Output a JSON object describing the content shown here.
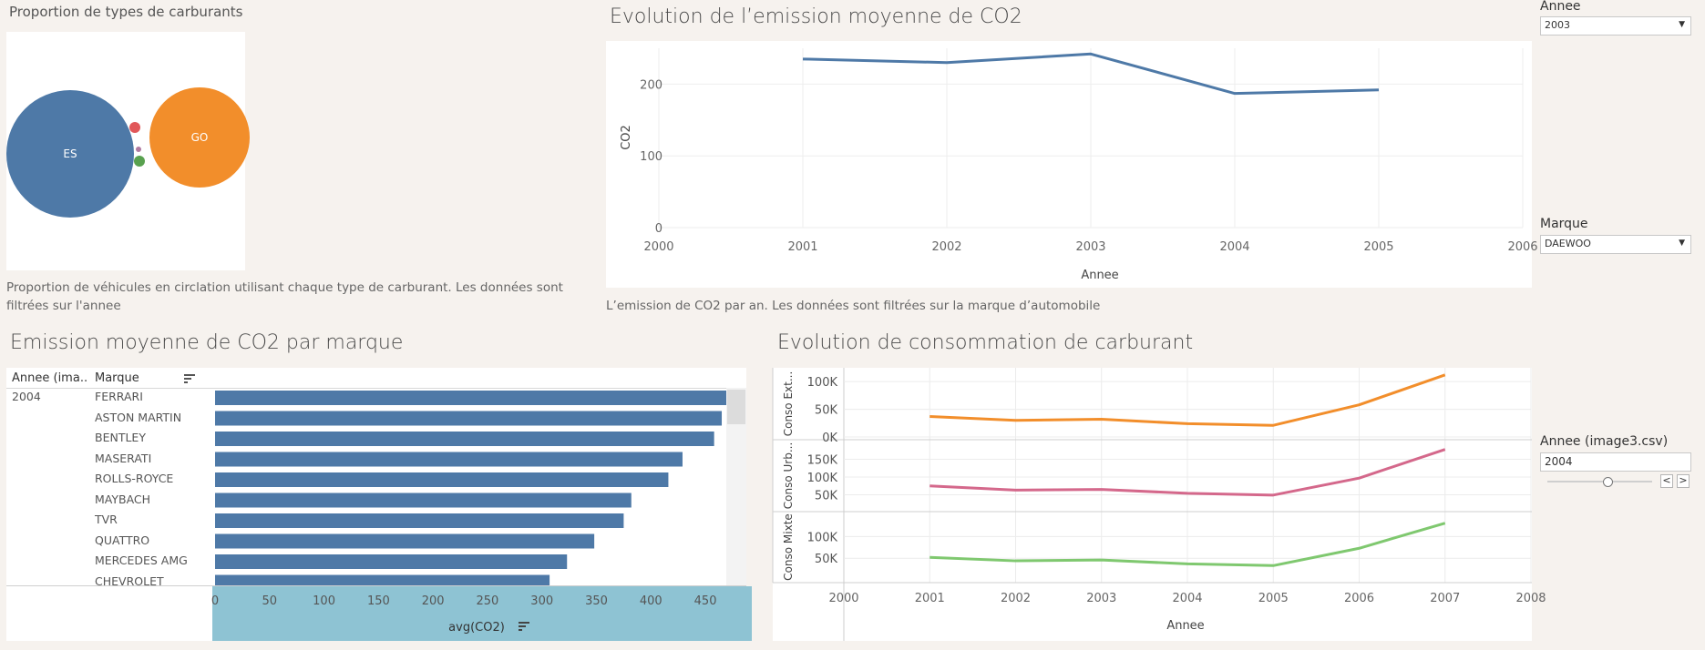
{
  "panel_fuel": {
    "title": "Proportion de types de carburants",
    "caption": "Proportion de véhicules en circlation utilisant chaque type de carburant. Les données sont filtrées sur l'annee",
    "bubbles": [
      {
        "label": "ES",
        "share": 0.6,
        "color": "#4e79a7"
      },
      {
        "label": "GO",
        "share": 0.36,
        "color": "#f28e2b"
      },
      {
        "label": "",
        "share": 0.01,
        "color": "#e15759"
      },
      {
        "label": "",
        "share": 0.01,
        "color": "#59a14f"
      },
      {
        "label": "",
        "share": 0.005,
        "color": "#b07aa1"
      }
    ]
  },
  "panel_co2_trend": {
    "title": "Evolution de l’emission moyenne de CO2",
    "caption": "L’emission de CO2 par an. Les données sont filtrées sur la marque d’automobile"
  },
  "panel_brand": {
    "title": "Emission moyenne de CO2 par marque",
    "col_year": "Annee (ima..",
    "col_brand": "Marque",
    "year_value": "2004"
  },
  "panel_conso": {
    "title": "Evolution de consommation de carburant"
  },
  "filters": {
    "annee_label": "Annee",
    "annee_value": "2003",
    "marque_label": "Marque",
    "marque_value": "DAEWOO",
    "annee_image3_label": "Annee (image3.csv)",
    "annee_image3_value": "2004",
    "prev_glyph": "<",
    "next_glyph": ">"
  },
  "chart_data": [
    {
      "type": "line",
      "id": "co2_trend",
      "xlabel": "Annee",
      "ylabel": "CO2",
      "xlim": [
        2000,
        2006
      ],
      "xticks": [
        2000,
        2001,
        2002,
        2003,
        2004,
        2005,
        2006
      ],
      "ylim": [
        0,
        250
      ],
      "yticks": [
        0,
        100,
        200
      ],
      "x": [
        2001,
        2002,
        2003,
        2004,
        2005
      ],
      "series": [
        {
          "values": [
            235,
            230,
            242,
            187,
            192
          ],
          "color": "#4e79a7"
        }
      ]
    },
    {
      "type": "bar",
      "id": "co2_by_brand",
      "orientation": "horizontal",
      "xlabel": "avg(CO2)",
      "xlim": [
        0,
        470
      ],
      "xticks": [
        0,
        50,
        100,
        150,
        200,
        250,
        300,
        350,
        400,
        450
      ],
      "categories": [
        "FERRARI",
        "ASTON MARTIN",
        "BENTLEY",
        "MASERATI",
        "ROLLS-ROYCE",
        "MAYBACH",
        "TVR",
        "QUATTRO",
        "MERCEDES AMG",
        "CHEVROLET"
      ],
      "values": [
        472,
        465,
        458,
        429,
        416,
        382,
        375,
        348,
        323,
        307
      ],
      "color": "#4e79a7"
    },
    {
      "type": "line",
      "id": "conso_trend",
      "xlabel": "Annee",
      "xlim": [
        2000,
        2008
      ],
      "xticks": [
        2000,
        2001,
        2002,
        2003,
        2004,
        2005,
        2006,
        2007,
        2008
      ],
      "x": [
        2001,
        2002,
        2003,
        2004,
        2005,
        2006,
        2007
      ],
      "series": [
        {
          "name": "Conso Ext...",
          "ylim": [
            0,
            115000
          ],
          "yticks": [
            0,
            50000,
            100000
          ],
          "tick_labels": [
            "0K",
            "50K",
            "100K"
          ],
          "color": "#f28e2b",
          "values": [
            37000,
            30000,
            32000,
            24000,
            21000,
            58000,
            112000
          ]
        },
        {
          "name": "Conso Urb...",
          "ylim": [
            10000,
            190000
          ],
          "yticks": [
            50000,
            100000,
            150000
          ],
          "tick_labels": [
            "50K",
            "100K",
            "150K"
          ],
          "color": "#d4688b",
          "values": [
            75000,
            63000,
            65000,
            54000,
            49000,
            97000,
            178000
          ]
        },
        {
          "name": "Conso Mixte",
          "ylim": [
            0,
            145000
          ],
          "yticks": [
            50000,
            100000
          ],
          "tick_labels": [
            "50K",
            "100K"
          ],
          "color": "#7fc86f",
          "values": [
            52000,
            44000,
            46000,
            37000,
            33000,
            73000,
            131000
          ]
        }
      ]
    }
  ]
}
